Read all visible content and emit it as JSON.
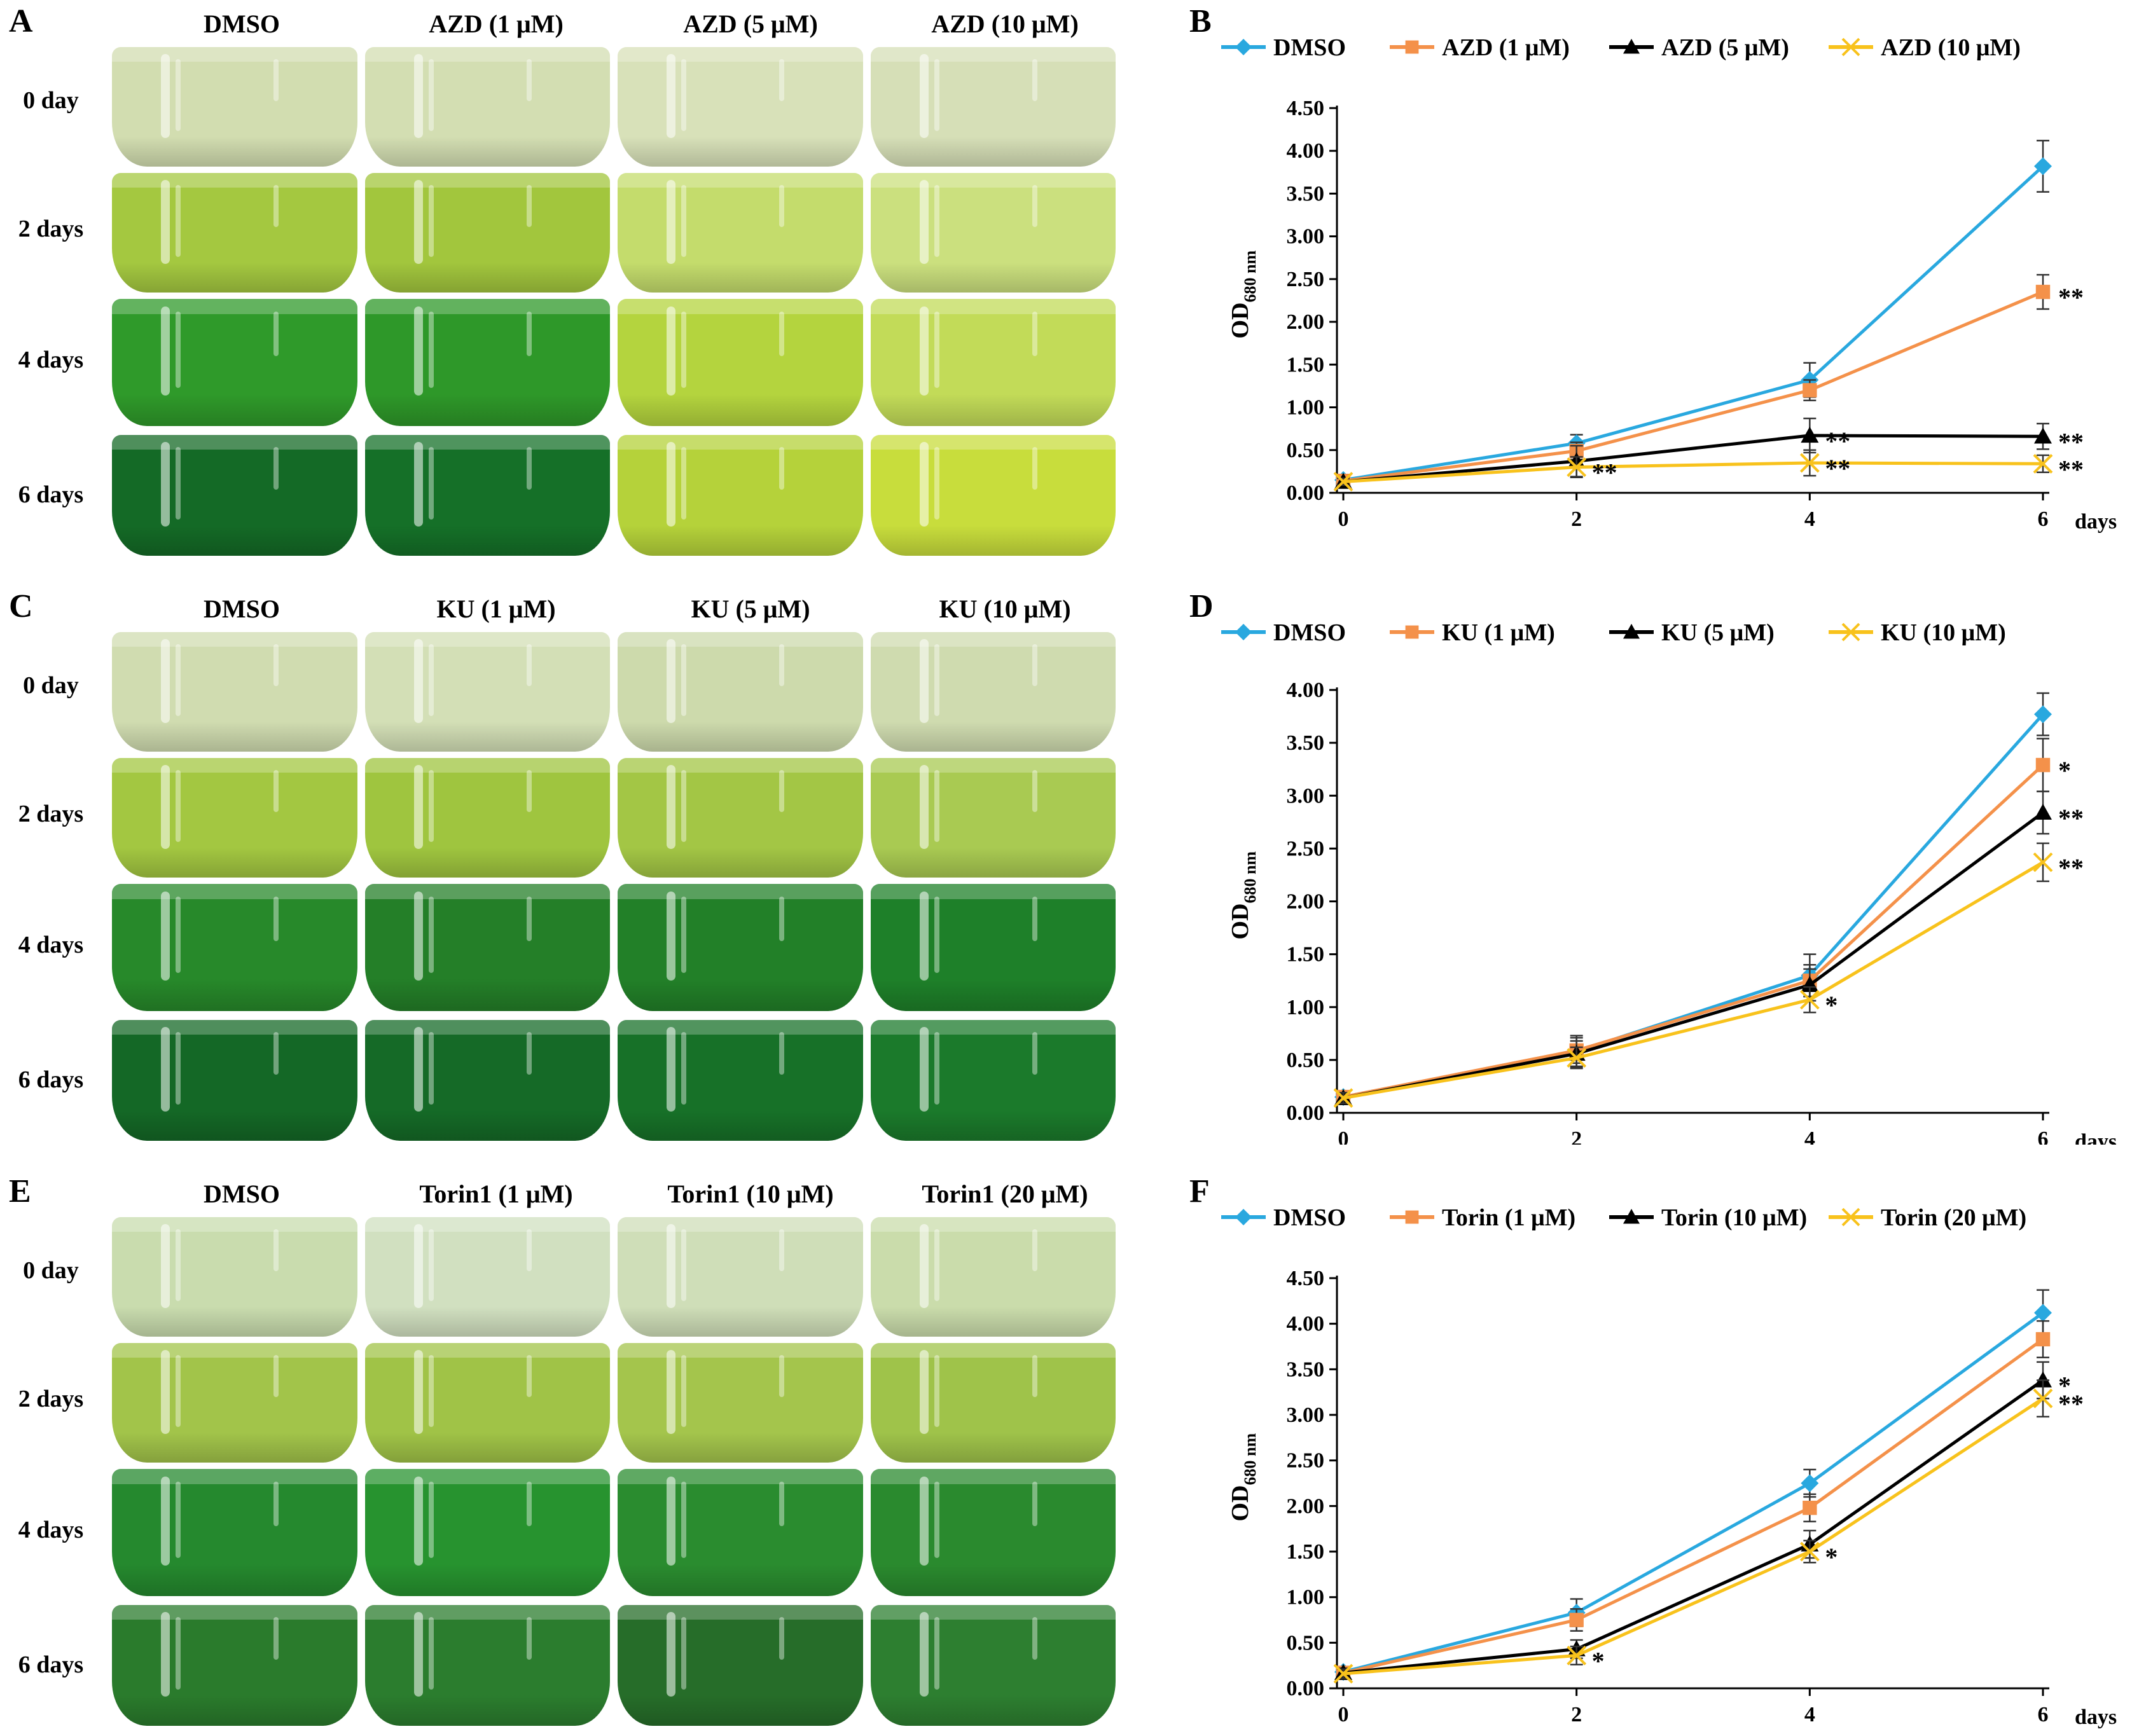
{
  "panels": [
    {
      "photo": {
        "letter": "A",
        "columns": [
          "DMSO",
          "AZD (1 μM)",
          "AZD (5 μM)",
          "AZD (10 μM)"
        ],
        "rows": [
          "0 day",
          "2 days",
          "4 days",
          "6 days"
        ],
        "colors": [
          [
            "#d2ddb0",
            "#d3deb2",
            "#d8e1b9",
            "#d6dfb7"
          ],
          [
            "#a4c840",
            "#a2c63d",
            "#c4dc6c",
            "#cbe07e"
          ],
          [
            "#2f9a2a",
            "#2e9829",
            "#b4d43e",
            "#c2db58"
          ],
          [
            "#146a26",
            "#157028",
            "#b5d23a",
            "#c8dd3c"
          ]
        ]
      },
      "chart": {
        "letter": "B",
        "legend": [
          "DMSO",
          "AZD (1 μM)",
          "AZD (5 μM)",
          "AZD (10 μM)"
        ],
        "ylabel": "OD",
        "ylabel_sub": "680 nm",
        "xlabel": "days",
        "x_ticks": [
          "0",
          "2",
          "4",
          "6"
        ],
        "y_ticks": [
          "0.00",
          "0.50",
          "1.00",
          "1.50",
          "2.00",
          "2.50",
          "3.00",
          "3.50",
          "4.00",
          "4.50"
        ],
        "significance": [
          {
            "text": "**",
            "series": 1,
            "x": 6
          },
          {
            "text": "**",
            "series": 2,
            "x": 6
          },
          {
            "text": "**",
            "series": 3,
            "x": 6
          },
          {
            "text": "**",
            "series": 2,
            "x": 4
          },
          {
            "text": "**",
            "series": 3,
            "x": 4
          },
          {
            "text": "**",
            "series": 3,
            "x": 2
          }
        ]
      }
    },
    {
      "photo": {
        "letter": "C",
        "columns": [
          "DMSO",
          "KU (1 μM)",
          "KU (5 μM)",
          "KU (10 μM)"
        ],
        "rows": [
          "0 day",
          "2 days",
          "4 days",
          "6 days"
        ],
        "colors": [
          [
            "#d0dcb0",
            "#d3dfb6",
            "#cddaac",
            "#cfdbaf"
          ],
          [
            "#a3c741",
            "#9fc53f",
            "#a3c645",
            "#a9ca52"
          ],
          [
            "#27892a",
            "#247f28",
            "#228028",
            "#1e8029"
          ],
          [
            "#146826",
            "#156a27",
            "#177128",
            "#1b7a2b"
          ]
        ]
      },
      "chart": {
        "letter": "D",
        "legend": [
          "DMSO",
          "KU (1 μM)",
          "KU (5 μM)",
          "KU (10 μM)"
        ],
        "ylabel": "OD",
        "ylabel_sub": "680 nm",
        "xlabel": "days",
        "x_ticks": [
          "0",
          "2",
          "4",
          "6"
        ],
        "y_ticks": [
          "0.00",
          "0.50",
          "1.00",
          "1.50",
          "2.00",
          "2.50",
          "3.00",
          "3.50",
          "4.00"
        ],
        "significance": [
          {
            "text": "*",
            "series": 1,
            "x": 6
          },
          {
            "text": "**",
            "series": 2,
            "x": 6
          },
          {
            "text": "**",
            "series": 3,
            "x": 6
          },
          {
            "text": "*",
            "series": 3,
            "x": 4
          }
        ]
      }
    },
    {
      "photo": {
        "letter": "E",
        "columns": [
          "DMSO",
          "Torin1 (1 μM)",
          "Torin1 (10 μM)",
          "Torin1 (20 μM)"
        ],
        "rows": [
          "0 day",
          "2 days",
          "4 days",
          "6 days"
        ],
        "colors": [
          [
            "#c9dcae",
            "#d1e0c0",
            "#cfdeb8",
            "#cadcab"
          ],
          [
            "#a2c44a",
            "#a0c347",
            "#a4c54c",
            "#9fc34a"
          ],
          [
            "#25892e",
            "#27932f",
            "#2a8c2f",
            "#2a8a2e"
          ],
          [
            "#2a7b2c",
            "#2b7d2e",
            "#266d29",
            "#2d7f30"
          ]
        ]
      },
      "chart": {
        "letter": "F",
        "legend": [
          "DMSO",
          "Torin (1 μM)",
          "Torin (10 μM)",
          "Torin (20 μM)"
        ],
        "ylabel": "OD",
        "ylabel_sub": "680 nm",
        "xlabel": "days",
        "x_ticks": [
          "0",
          "2",
          "4",
          "6"
        ],
        "y_ticks": [
          "0.00",
          "0.50",
          "1.00",
          "1.50",
          "2.00",
          "2.50",
          "3.00",
          "3.50",
          "4.00",
          "4.50"
        ],
        "significance": [
          {
            "text": "*",
            "series": 2,
            "x": 6
          },
          {
            "text": "**",
            "series": 3,
            "x": 6
          },
          {
            "text": "*",
            "series": 3,
            "x": 4
          },
          {
            "text": "*",
            "series": 3,
            "x": 2
          }
        ]
      }
    }
  ],
  "chart_data": [
    {
      "type": "line",
      "title": "",
      "xlabel": "days",
      "ylabel": "OD 680 nm",
      "x": [
        0,
        2,
        4,
        6
      ],
      "ylim": [
        0,
        4.5
      ],
      "series": [
        {
          "name": "DMSO",
          "marker": "diamond",
          "color": "#29a8df",
          "values": [
            0.15,
            0.58,
            1.32,
            3.82
          ],
          "errors": [
            0.05,
            0.1,
            0.2,
            0.3
          ]
        },
        {
          "name": "AZD (1 μM)",
          "marker": "square",
          "color": "#f4914a",
          "values": [
            0.14,
            0.49,
            1.2,
            2.35
          ],
          "errors": [
            0.05,
            0.1,
            0.12,
            0.2
          ]
        },
        {
          "name": "AZD (5 μM)",
          "marker": "triangle",
          "color": "#000000",
          "values": [
            0.13,
            0.37,
            0.67,
            0.66
          ],
          "errors": [
            0.04,
            0.18,
            0.2,
            0.15
          ]
        },
        {
          "name": "AZD (10 μM)",
          "marker": "x",
          "color": "#f8c21c",
          "values": [
            0.13,
            0.3,
            0.35,
            0.34
          ],
          "errors": [
            0.04,
            0.12,
            0.15,
            0.1
          ]
        }
      ]
    },
    {
      "type": "line",
      "title": "",
      "xlabel": "days",
      "ylabel": "OD 680 nm",
      "x": [
        0,
        2,
        4,
        6
      ],
      "ylim": [
        0,
        4.0
      ],
      "series": [
        {
          "name": "DMSO",
          "marker": "diamond",
          "color": "#29a8df",
          "values": [
            0.15,
            0.58,
            1.3,
            3.77
          ],
          "errors": [
            0.05,
            0.15,
            0.2,
            0.2
          ]
        },
        {
          "name": "KU (1 μM)",
          "marker": "square",
          "color": "#f4914a",
          "values": [
            0.15,
            0.59,
            1.25,
            3.29
          ],
          "errors": [
            0.05,
            0.12,
            0.15,
            0.25
          ]
        },
        {
          "name": "KU (5 μM)",
          "marker": "triangle",
          "color": "#000000",
          "values": [
            0.14,
            0.56,
            1.21,
            2.84
          ],
          "errors": [
            0.05,
            0.12,
            0.15,
            0.2
          ]
        },
        {
          "name": "KU (10 μM)",
          "marker": "x",
          "color": "#f8c21c",
          "values": [
            0.14,
            0.52,
            1.07,
            2.37
          ],
          "errors": [
            0.05,
            0.1,
            0.12,
            0.18
          ]
        }
      ]
    },
    {
      "type": "line",
      "title": "",
      "xlabel": "days",
      "ylabel": "OD 680 nm",
      "x": [
        0,
        2,
        4,
        6
      ],
      "ylim": [
        0,
        4.5
      ],
      "series": [
        {
          "name": "DMSO",
          "marker": "diamond",
          "color": "#29a8df",
          "values": [
            0.18,
            0.83,
            2.25,
            4.12
          ],
          "errors": [
            0.05,
            0.15,
            0.15,
            0.25
          ]
        },
        {
          "name": "Torin (1 μM)",
          "marker": "square",
          "color": "#f4914a",
          "values": [
            0.17,
            0.75,
            1.98,
            3.83
          ],
          "errors": [
            0.05,
            0.12,
            0.15,
            0.2
          ]
        },
        {
          "name": "Torin (10 μM)",
          "marker": "triangle",
          "color": "#000000",
          "values": [
            0.17,
            0.43,
            1.58,
            3.38
          ],
          "errors": [
            0.05,
            0.1,
            0.15,
            0.2
          ]
        },
        {
          "name": "Torin (20 μM)",
          "marker": "x",
          "color": "#f8c21c",
          "values": [
            0.16,
            0.36,
            1.5,
            3.18
          ],
          "errors": [
            0.05,
            0.1,
            0.12,
            0.2
          ]
        }
      ]
    }
  ]
}
